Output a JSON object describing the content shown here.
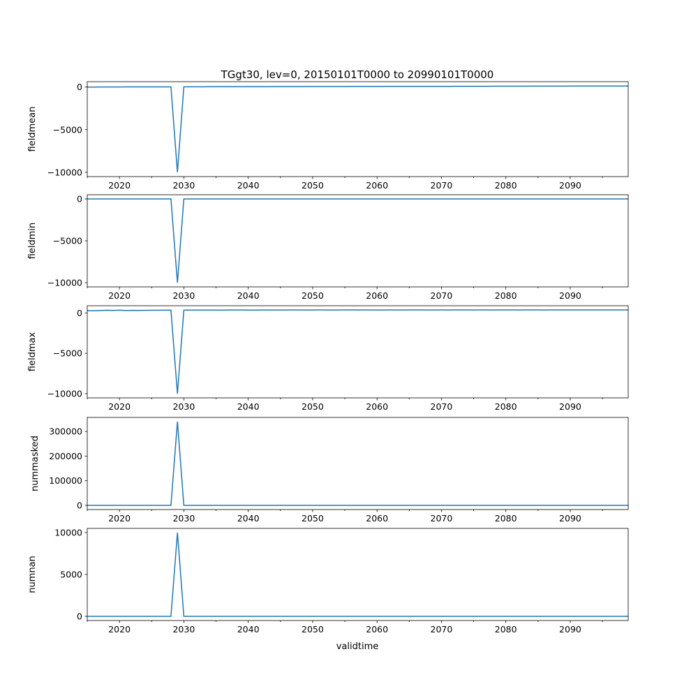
{
  "chart_data": {
    "type": "line",
    "title": "TGgt30, lev=0, 20150101T0000 to 20990101T0000",
    "xlabel": "validtime",
    "xlim": [
      2015,
      2099
    ],
    "xticks": [
      2020,
      2030,
      2040,
      2050,
      2060,
      2070,
      2080,
      2090
    ],
    "x_start": 2015,
    "x_step": 1,
    "line_color": "#1f77b4",
    "panels": [
      {
        "ylabel": "fieldmean",
        "yticks": [
          0,
          -5000,
          -10000
        ],
        "ytick_labels": [
          "0",
          "−5000",
          "−10000"
        ],
        "values": [
          0,
          5,
          10,
          10,
          12,
          12,
          15,
          15,
          15,
          18,
          18,
          20,
          20,
          22,
          -9999,
          25,
          28,
          30,
          30,
          32,
          33,
          35,
          37,
          38,
          40,
          42,
          43,
          45,
          46,
          48,
          50,
          50,
          52,
          54,
          55,
          56,
          58,
          60,
          60,
          62,
          63,
          65,
          66,
          68,
          70,
          70,
          72,
          73,
          75,
          76,
          78,
          80,
          80,
          82,
          83,
          85,
          86,
          88,
          90,
          90,
          92,
          93,
          95,
          96,
          98,
          100,
          100,
          102,
          103,
          105,
          106,
          108,
          110,
          110,
          112,
          113,
          115,
          116,
          118,
          120,
          120,
          122,
          123,
          125,
          126
        ]
      },
      {
        "ylabel": "fieldmin",
        "yticks": [
          0,
          -5000,
          -10000
        ],
        "ytick_labels": [
          "0",
          "−5000",
          "−10000"
        ],
        "values": [
          0,
          0,
          0,
          0,
          0,
          0,
          0,
          0,
          0,
          0,
          0,
          0,
          0,
          0,
          -9999,
          0,
          0,
          0,
          0,
          0,
          0,
          0,
          0,
          0,
          0,
          0,
          0,
          0,
          0,
          0,
          0,
          0,
          0,
          0,
          0,
          0,
          0,
          0,
          0,
          0,
          0,
          0,
          0,
          0,
          0,
          0,
          0,
          0,
          0,
          0,
          0,
          0,
          0,
          0,
          0,
          0,
          0,
          0,
          0,
          0,
          0,
          0,
          0,
          0,
          0,
          0,
          0,
          0,
          0,
          0,
          0,
          0,
          0,
          0,
          0,
          0,
          0,
          0,
          0,
          0,
          0,
          0,
          0,
          0,
          0
        ]
      },
      {
        "ylabel": "fieldmax",
        "yticks": [
          0,
          -5000,
          -10000
        ],
        "ytick_labels": [
          "0",
          "−5000",
          "−10000"
        ],
        "values": [
          280,
          260,
          300,
          330,
          310,
          340,
          300,
          320,
          310,
          320,
          330,
          330,
          340,
          340,
          -9999,
          340,
          350,
          355,
          350,
          345,
          350,
          340,
          370,
          370,
          365,
          360,
          360,
          365,
          370,
          370,
          365,
          370,
          372,
          370,
          368,
          370,
          372,
          370,
          368,
          370,
          372,
          375,
          370,
          372,
          370,
          368,
          370,
          372,
          370,
          370,
          372,
          375,
          372,
          370,
          370,
          372,
          370,
          372,
          375,
          372,
          370,
          372,
          375,
          370,
          372,
          375,
          372,
          370,
          372,
          375,
          372,
          370,
          372,
          375,
          372,
          375,
          372,
          375,
          372,
          375,
          372,
          375,
          372,
          375,
          375
        ]
      },
      {
        "ylabel": "nummasked",
        "yticks": [
          0,
          100000,
          200000,
          300000
        ],
        "ytick_labels": [
          "0",
          "100000",
          "200000",
          "300000"
        ],
        "values": [
          0,
          0,
          0,
          0,
          0,
          0,
          0,
          0,
          0,
          0,
          0,
          0,
          0,
          0,
          340000,
          0,
          0,
          0,
          0,
          0,
          0,
          0,
          0,
          0,
          0,
          0,
          0,
          0,
          0,
          0,
          0,
          0,
          0,
          0,
          0,
          0,
          0,
          0,
          0,
          0,
          0,
          0,
          0,
          0,
          0,
          0,
          0,
          0,
          0,
          0,
          0,
          0,
          0,
          0,
          0,
          0,
          0,
          0,
          0,
          0,
          0,
          0,
          0,
          0,
          0,
          0,
          0,
          0,
          0,
          0,
          0,
          0,
          0,
          0,
          0,
          0,
          0,
          0,
          0,
          0,
          0,
          0,
          0,
          0,
          0
        ]
      },
      {
        "ylabel": "numnan",
        "yticks": [
          0,
          5000,
          10000
        ],
        "ytick_labels": [
          "0",
          "5000",
          "10000"
        ],
        "values": [
          0,
          0,
          0,
          0,
          0,
          0,
          0,
          0,
          0,
          0,
          0,
          0,
          0,
          0,
          10000,
          0,
          0,
          0,
          0,
          0,
          0,
          0,
          0,
          0,
          0,
          0,
          0,
          0,
          0,
          0,
          0,
          0,
          0,
          0,
          0,
          0,
          0,
          0,
          0,
          0,
          0,
          0,
          0,
          0,
          0,
          0,
          0,
          0,
          0,
          0,
          0,
          0,
          0,
          0,
          0,
          0,
          0,
          0,
          0,
          0,
          0,
          0,
          0,
          0,
          0,
          0,
          0,
          0,
          0,
          0,
          0,
          0,
          0,
          0,
          0,
          0,
          0,
          0,
          0,
          0,
          0,
          0,
          0,
          0,
          0
        ]
      }
    ]
  }
}
